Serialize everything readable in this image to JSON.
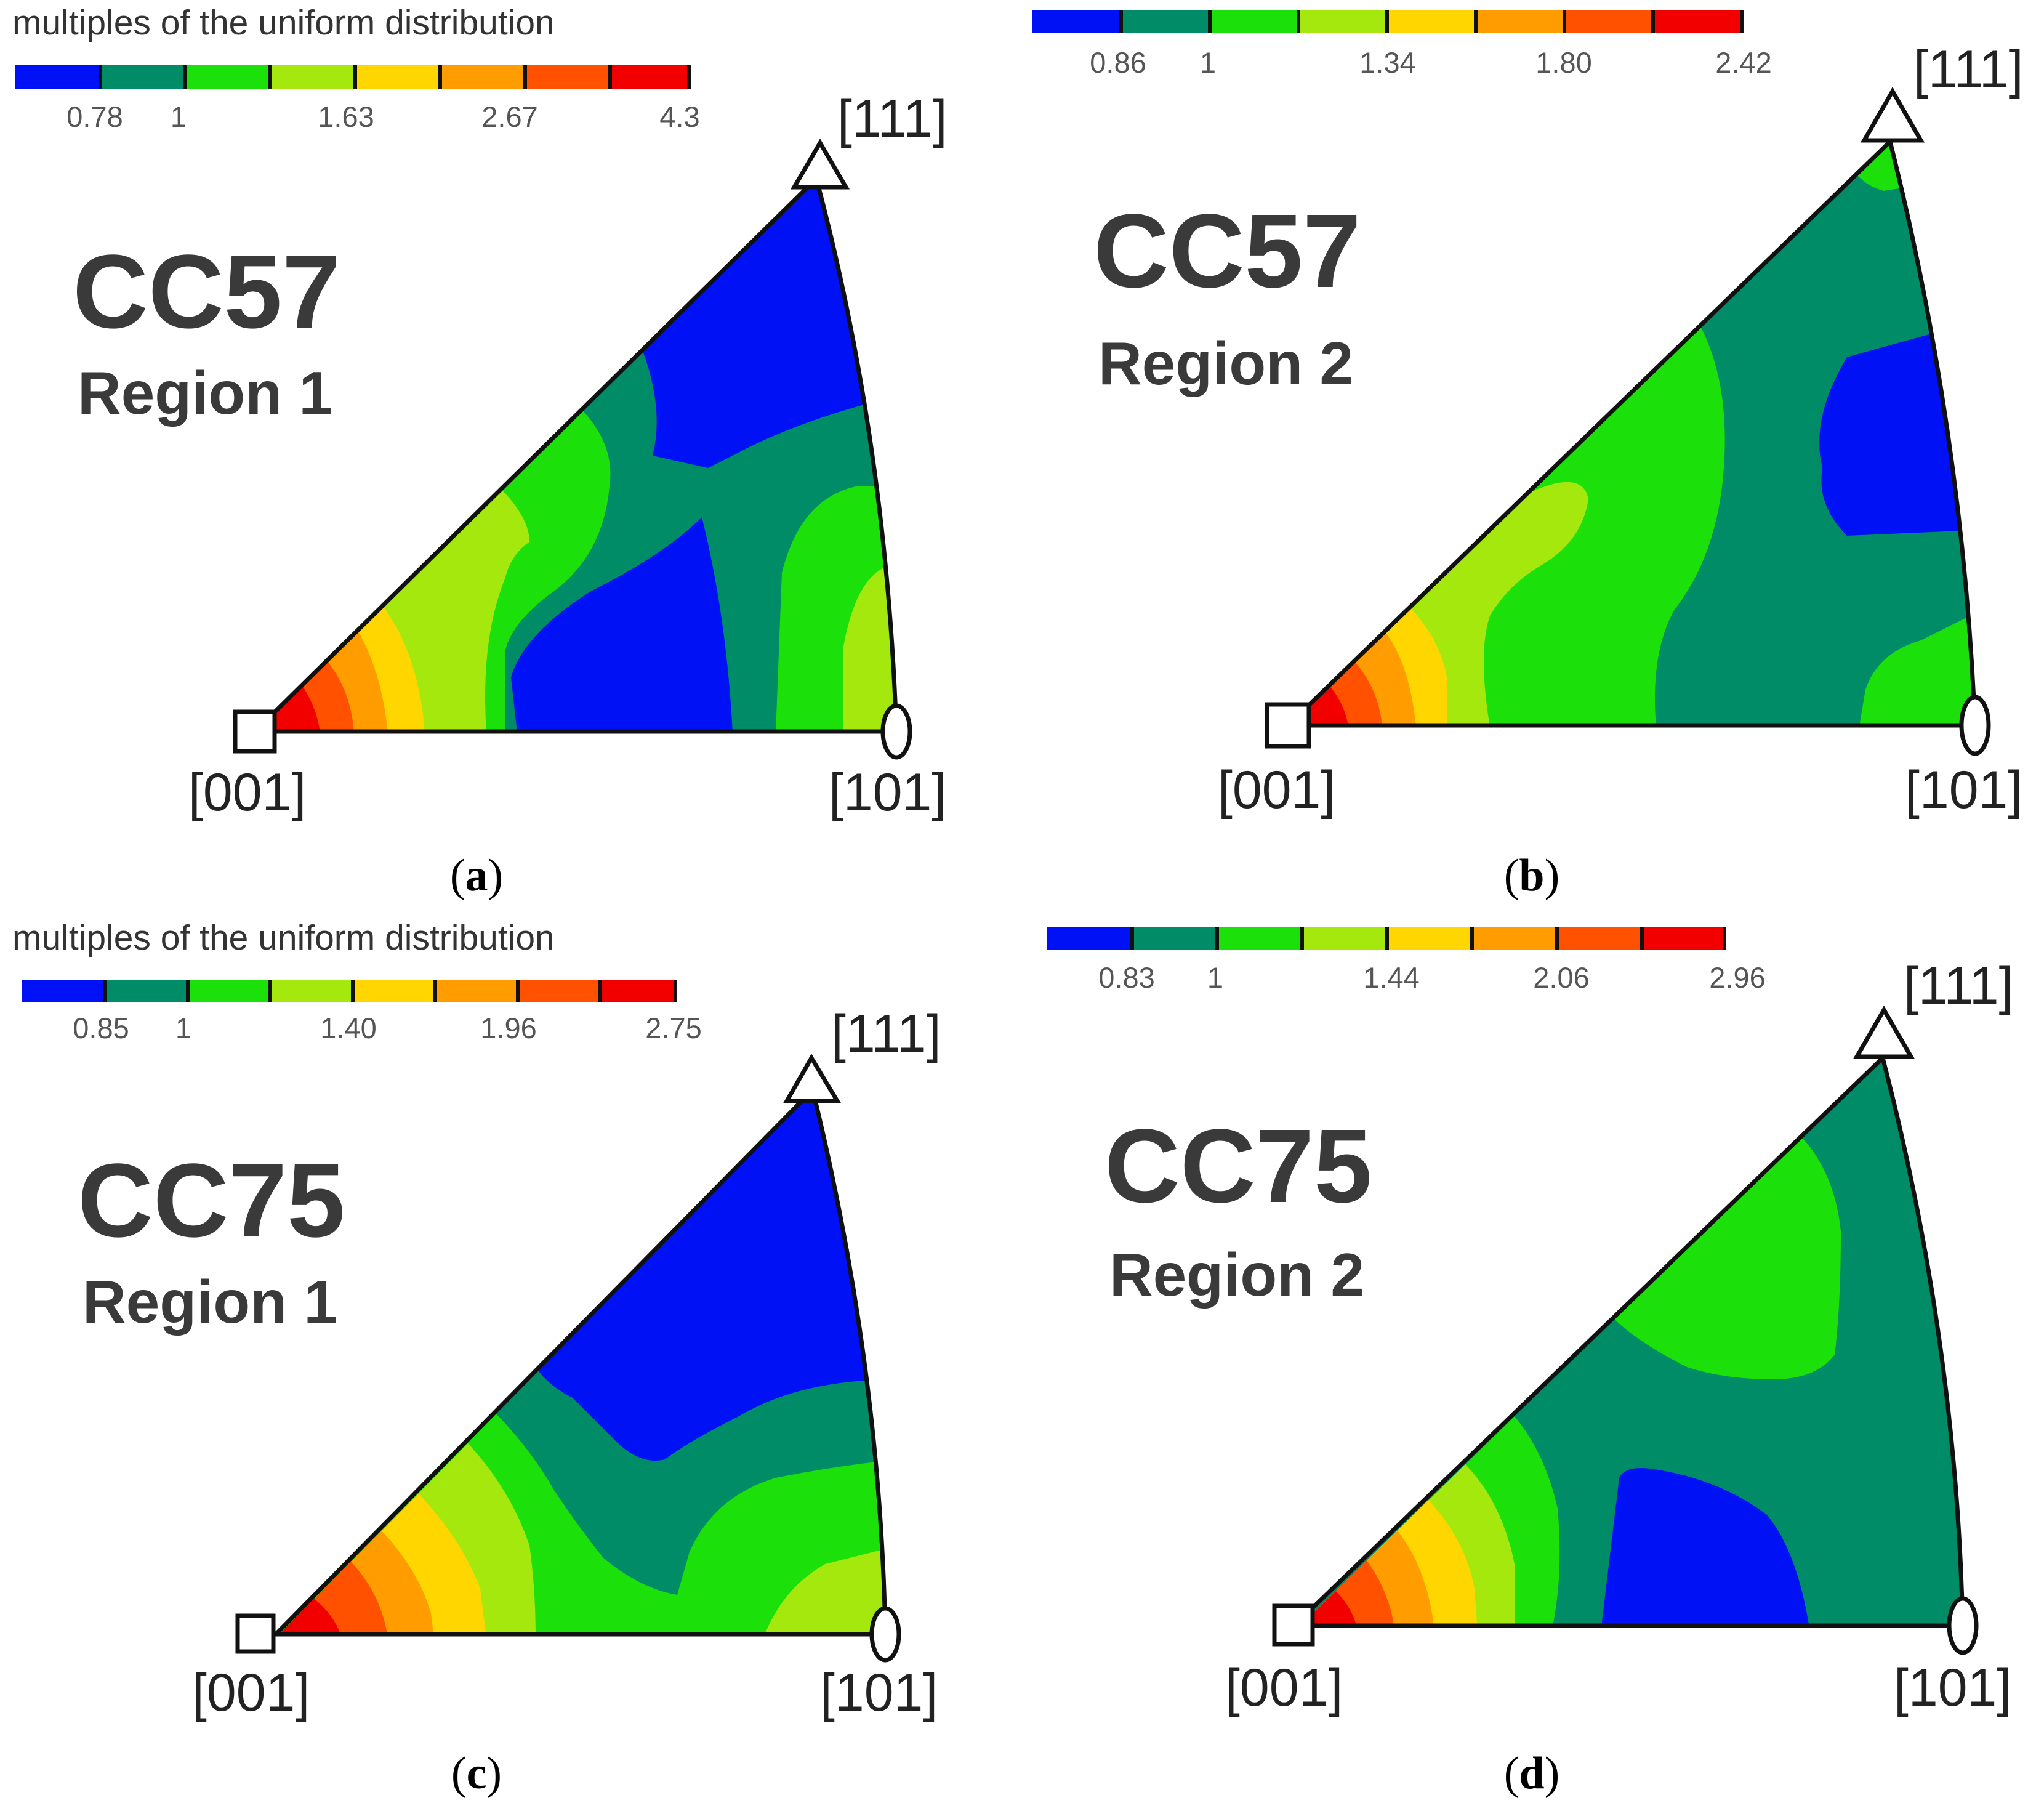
{
  "colors": {
    "levels": [
      "#0012f5",
      "#008c66",
      "#1ce00a",
      "#a4e80e",
      "#ffd600",
      "#ff9d00",
      "#ff5100",
      "#f20000"
    ],
    "outline": "#111111"
  },
  "chart_data": [
    {
      "type": "inverse-pole-figure",
      "panel": "a",
      "caption_open": "(",
      "caption_letter": "a",
      "caption_close": ")",
      "sample": "CC57",
      "region": "Region 1",
      "legend": {
        "title": "multiples of the uniform distribution",
        "ticks": [
          "0.78",
          "1",
          "1.63",
          "2.67",
          "4.3"
        ],
        "max": 4.3
      },
      "poles": [
        "[001]",
        "[101]",
        "[111]"
      ]
    },
    {
      "type": "inverse-pole-figure",
      "panel": "b",
      "caption_open": "(",
      "caption_letter": "b",
      "caption_close": ")",
      "sample": "CC57",
      "region": "Region 2",
      "legend": {
        "title": "",
        "ticks": [
          "0.86",
          "1",
          "1.34",
          "1.80",
          "2.42"
        ],
        "max": 2.42
      },
      "poles": [
        "[001]",
        "[101]",
        "[111]"
      ]
    },
    {
      "type": "inverse-pole-figure",
      "panel": "c",
      "caption_open": "(",
      "caption_letter": "c",
      "caption_close": ")",
      "sample": "CC75",
      "region": "Region 1",
      "legend": {
        "title": "multiples of the uniform distribution",
        "ticks": [
          "0.85",
          "1",
          "1.40",
          "1.96",
          "2.75"
        ],
        "max": 2.75
      },
      "poles": [
        "[001]",
        "[101]",
        "[111]"
      ]
    },
    {
      "type": "inverse-pole-figure",
      "panel": "d",
      "caption_open": "(",
      "caption_letter": "d",
      "caption_close": ")",
      "sample": "CC75",
      "region": "Region 2",
      "legend": {
        "title": "",
        "ticks": [
          "0.83",
          "1",
          "1.44",
          "2.06",
          "2.96"
        ],
        "max": 2.96
      },
      "poles": [
        "[001]",
        "[101]",
        "[111]"
      ]
    }
  ]
}
